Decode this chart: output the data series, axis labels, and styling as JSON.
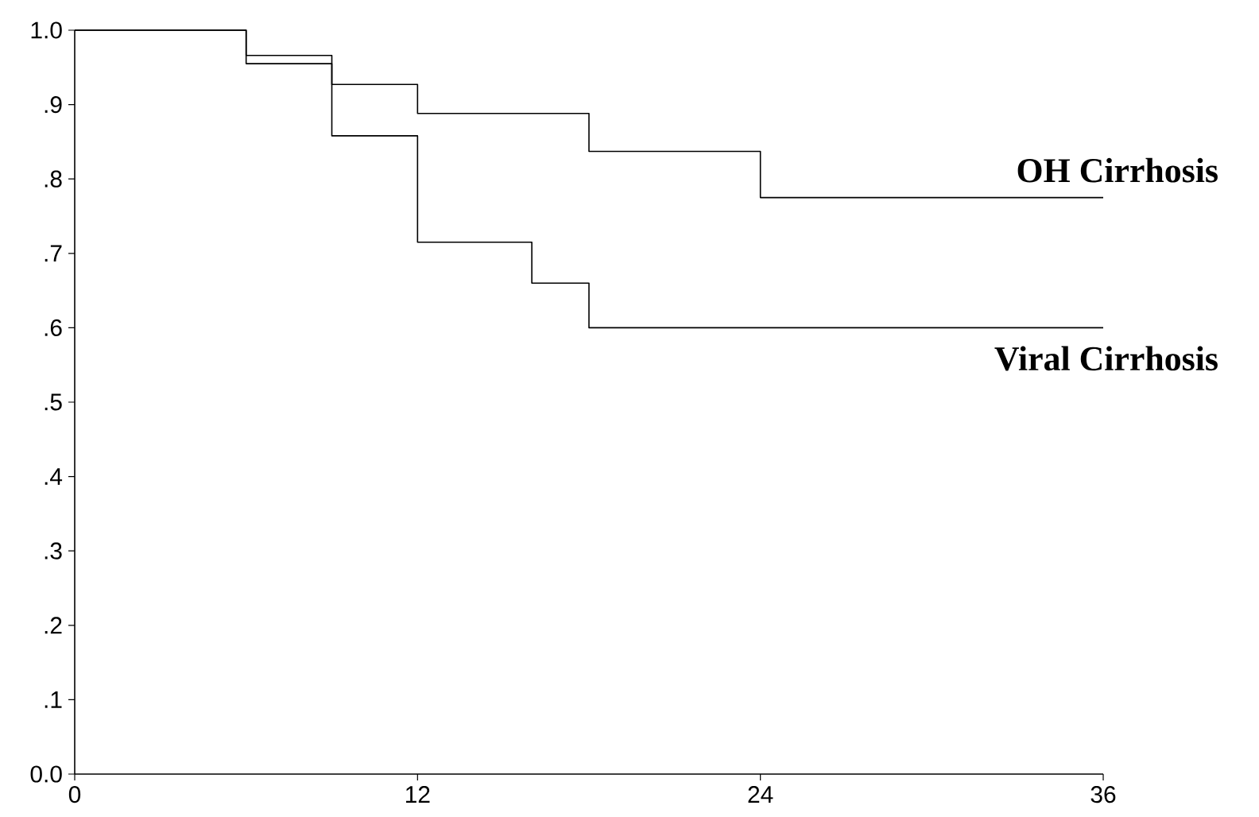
{
  "chart_data": {
    "type": "step",
    "x": [
      0,
      6,
      9,
      12,
      16,
      18,
      24,
      36
    ],
    "series": [
      {
        "name": "OH Cirrhosis",
        "color": "#000000",
        "values": [
          1.0,
          0.966,
          0.927,
          0.888,
          0.888,
          0.837,
          0.775,
          0.775
        ]
      },
      {
        "name": "Viral Cirrhosis",
        "color": "#000000",
        "values": [
          1.0,
          0.955,
          0.858,
          0.715,
          0.66,
          0.6,
          0.6,
          0.6
        ]
      }
    ],
    "xlim": [
      0,
      36
    ],
    "ylim": [
      0,
      1
    ],
    "xticks": [
      0,
      12,
      24,
      36
    ],
    "yticks": [
      {
        "value": 0,
        "label": "0.0"
      },
      {
        "value": 0.1,
        "label": ".1"
      },
      {
        "value": 0.2,
        "label": ".2"
      },
      {
        "value": 0.3,
        "label": ".3"
      },
      {
        "value": 0.4,
        "label": ".4"
      },
      {
        "value": 0.5,
        "label": ".5"
      },
      {
        "value": 0.6,
        "label": ".6"
      },
      {
        "value": 0.7,
        "label": ".7"
      },
      {
        "value": 0.8,
        "label": ".8"
      },
      {
        "value": 0.9,
        "label": ".9"
      },
      {
        "value": 1,
        "label": "1.0"
      }
    ],
    "grid": false
  }
}
